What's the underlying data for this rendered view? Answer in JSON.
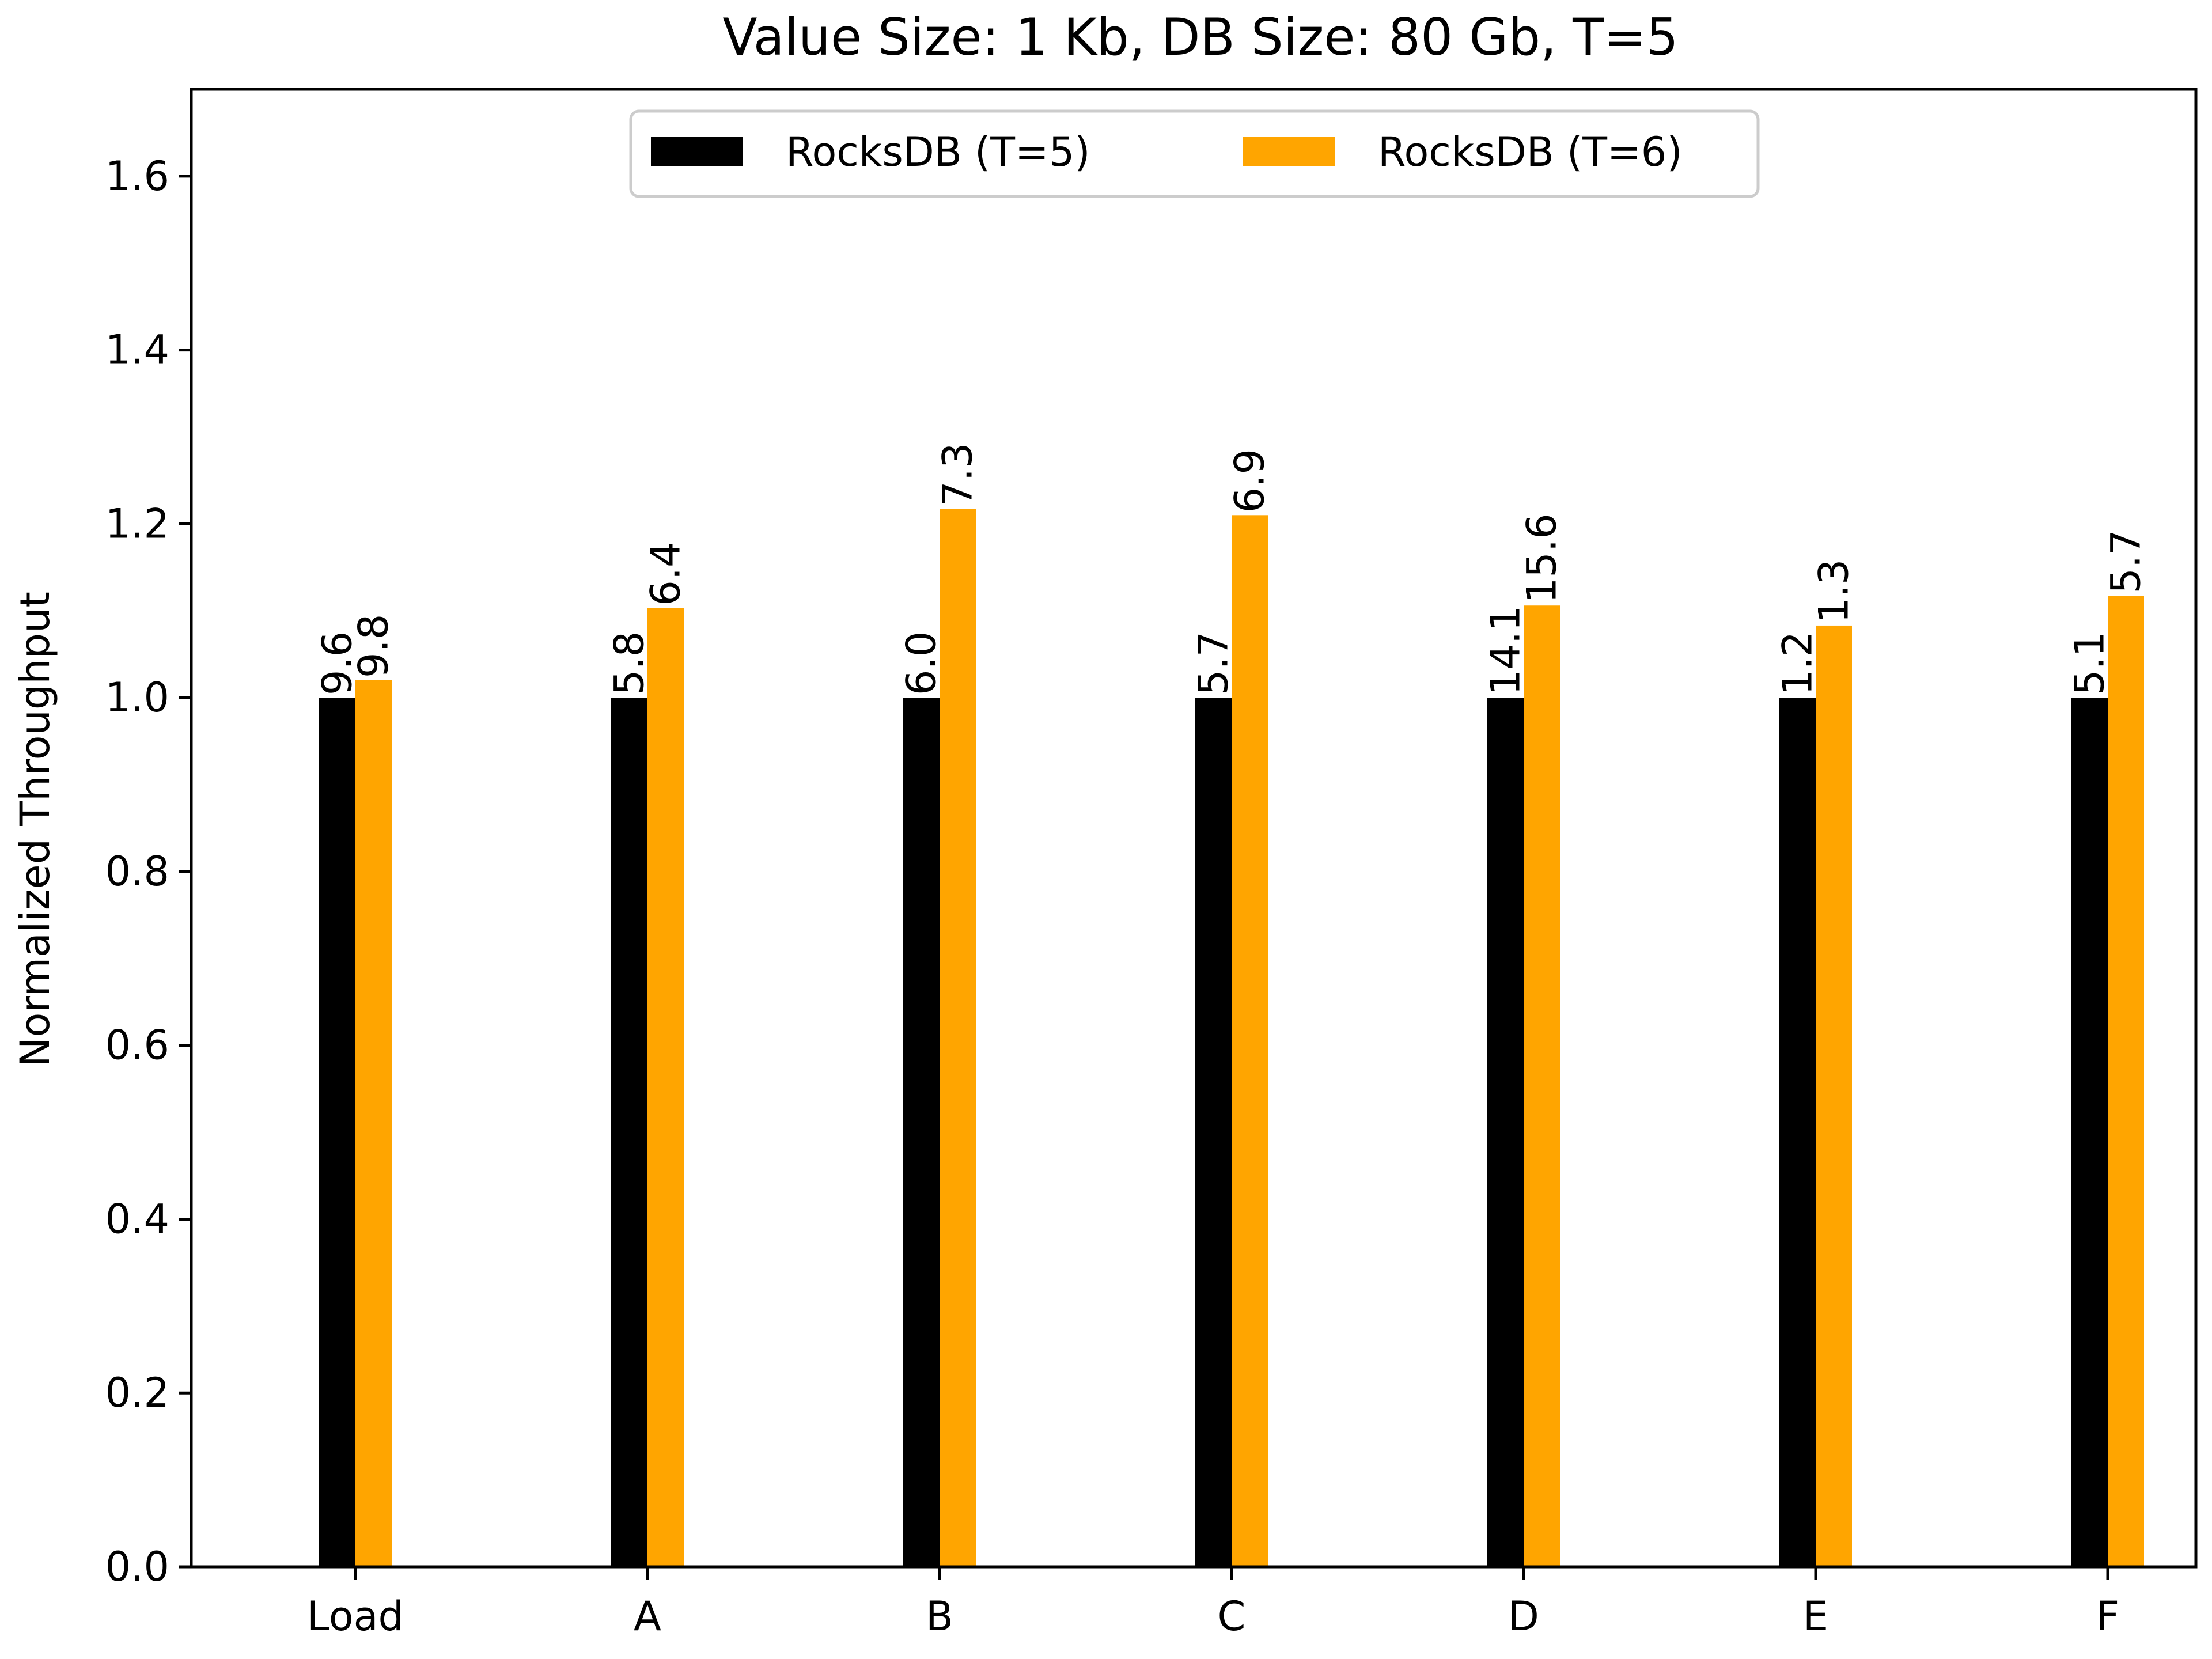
{
  "chart_data": {
    "type": "bar",
    "title": "Value Size: 1 Kb, DB Size: 80 Gb, T=5",
    "xlabel": "",
    "ylabel": "Normalized Throughput",
    "categories": [
      "Load",
      "A",
      "B",
      "C",
      "D",
      "E",
      "F"
    ],
    "ylim": [
      0,
      1.7
    ],
    "yticks": [
      "0.0",
      "0.2",
      "0.4",
      "0.6",
      "0.8",
      "1.0",
      "1.2",
      "1.4",
      "1.6"
    ],
    "series": [
      {
        "name": "RocksDB (T=5)",
        "color": "#000000",
        "values": [
          1.0,
          1.0,
          1.0,
          1.0,
          1.0,
          1.0,
          1.0
        ],
        "labels": [
          "9.6",
          "5.8",
          "6.0",
          "5.7",
          "14.1",
          "1.2",
          "5.1"
        ]
      },
      {
        "name": "RocksDB (T=6)",
        "color": "#ffa500",
        "values": [
          1.02,
          1.103,
          1.217,
          1.21,
          1.106,
          1.083,
          1.117
        ],
        "labels": [
          "9.8",
          "6.4",
          "7.3",
          "6.9",
          "15.6",
          "1.3",
          "5.7"
        ]
      }
    ],
    "legend": "top-center",
    "grid": false
  }
}
